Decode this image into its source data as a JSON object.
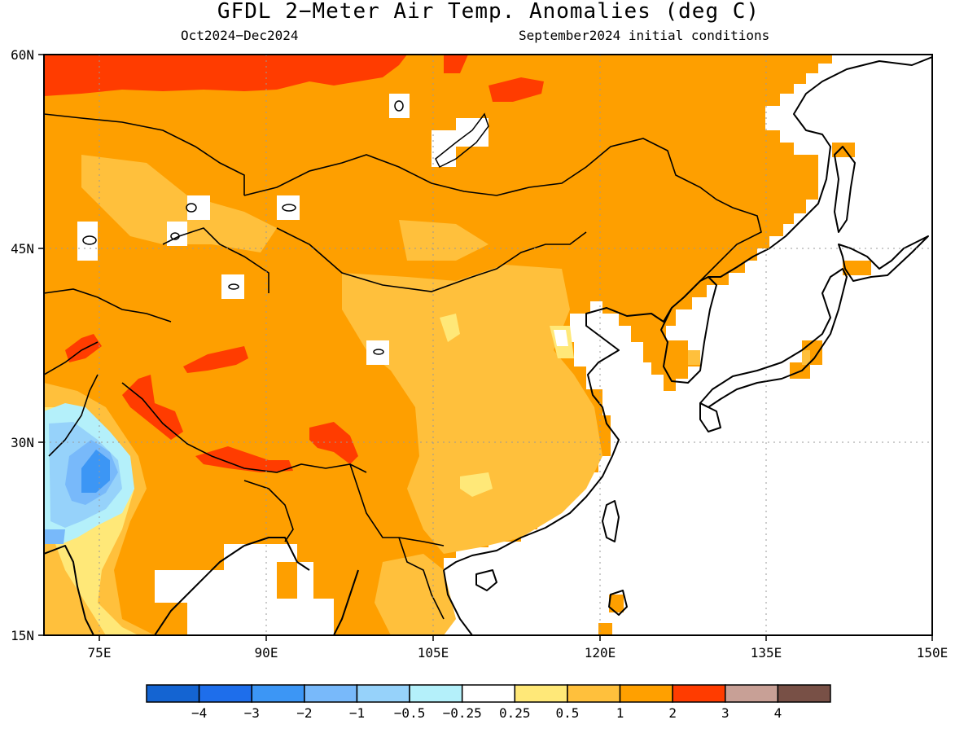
{
  "header": {
    "title": "GFDL 2−Meter Air Temp. Anomalies (deg C)",
    "period": "Oct2024−Dec2024",
    "init": "September2024 initial conditions"
  },
  "map": {
    "region": "East Asia",
    "projection": "lat-lon",
    "lon_range": [
      70,
      150
    ],
    "lat_range": [
      15,
      60
    ],
    "lat_ticks": [
      "60N",
      "45N",
      "30N",
      "15N"
    ],
    "lon_ticks": [
      "75E",
      "90E",
      "105E",
      "120E",
      "135E",
      "150E"
    ],
    "land_fill": "#fe9f00",
    "ocean_fill": "#ffffff",
    "coastline_color": "#000000"
  },
  "legend": {
    "colors": [
      "#1464d2",
      "#1e6eeb",
      "#3c96f5",
      "#78b9fa",
      "#96d2fa",
      "#b4f0fa",
      "#ffffff",
      "#ffe878",
      "#ffc03c",
      "#ffa000",
      "#ff3c00",
      "#c8a096",
      "#785046"
    ],
    "labels": [
      "−4",
      "−3",
      "−2",
      "−1",
      "−0.5",
      "−0.25",
      "0.25",
      "0.5",
      "1",
      "2",
      "3",
      "4"
    ]
  }
}
